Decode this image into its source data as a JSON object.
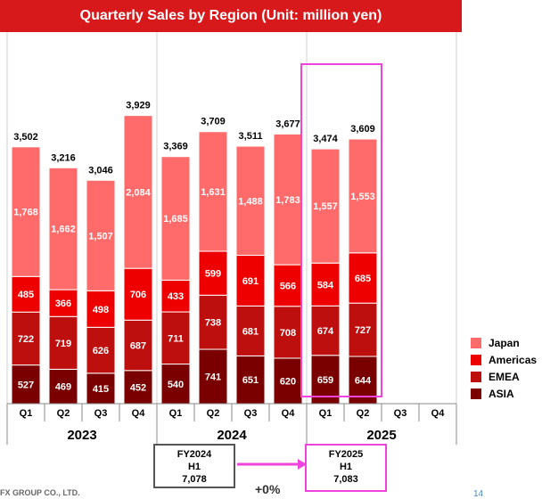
{
  "colors": {
    "japan": "#ff6a6a",
    "americas": "#ee0000",
    "emea": "#be0f0f",
    "asia": "#7a0000",
    "title_bg": "#d7191c",
    "highlight": "#ee44dd",
    "box_dark": "#555555"
  },
  "chart_data": {
    "type": "bar",
    "stacked": true,
    "title": "Quarterly Sales by Region (Unit: million yen)",
    "categories": [
      {
        "quarter": "Q1",
        "year": "2023"
      },
      {
        "quarter": "Q2",
        "year": "2023"
      },
      {
        "quarter": "Q3",
        "year": "2023"
      },
      {
        "quarter": "Q4",
        "year": "2023"
      },
      {
        "quarter": "Q1",
        "year": "2024"
      },
      {
        "quarter": "Q2",
        "year": "2024"
      },
      {
        "quarter": "Q3",
        "year": "2024"
      },
      {
        "quarter": "Q4",
        "year": "2024"
      },
      {
        "quarter": "Q1",
        "year": "2025"
      },
      {
        "quarter": "Q2",
        "year": "2025"
      },
      {
        "quarter": "Q3",
        "year": "2025"
      },
      {
        "quarter": "Q4",
        "year": "2025"
      }
    ],
    "years": [
      "2023",
      "2024",
      "2025"
    ],
    "series": [
      {
        "name": "ASIA",
        "values": [
          527,
          469,
          415,
          452,
          540,
          741,
          651,
          620,
          659,
          644,
          null,
          null
        ]
      },
      {
        "name": "EMEA",
        "values": [
          722,
          719,
          626,
          687,
          711,
          738,
          681,
          708,
          674,
          727,
          null,
          null
        ]
      },
      {
        "name": "Americas",
        "values": [
          485,
          366,
          498,
          706,
          433,
          599,
          691,
          566,
          584,
          685,
          null,
          null
        ]
      },
      {
        "name": "Japan",
        "values": [
          1768,
          1662,
          1507,
          2084,
          1685,
          1631,
          1488,
          1783,
          1557,
          1553,
          null,
          null
        ]
      }
    ],
    "totals": [
      "3,502",
      "3,216",
      "3,046",
      "3,929",
      "3,369",
      "3,709",
      "3,511",
      "3,677",
      "3,474",
      "3,609",
      null,
      null
    ],
    "value_labels": {
      "ASIA": [
        "527",
        "469",
        "415",
        "452",
        "540",
        "741",
        "651",
        "620",
        "659",
        "644"
      ],
      "EMEA": [
        "722",
        "719",
        "626",
        "687",
        "711",
        "738",
        "681",
        "708",
        "674",
        "727"
      ],
      "Americas": [
        "485",
        "366",
        "498",
        "706",
        "433",
        "599",
        "691",
        "566",
        "584",
        "685"
      ],
      "Japan": [
        "1,768",
        "1,662",
        "1,507",
        "2,084",
        "1,685",
        "1,631",
        "1,488",
        "1,783",
        "1,557",
        "1,553"
      ]
    },
    "ylim": [
      0,
      4500
    ],
    "legend_position": "right",
    "grid": false,
    "highlighted_group": "2025"
  },
  "legend": {
    "items": [
      {
        "name": "Japan",
        "color_key": "japan"
      },
      {
        "name": "Americas",
        "color_key": "americas"
      },
      {
        "name": "EMEA",
        "color_key": "emea"
      },
      {
        "name": "ASIA",
        "color_key": "asia"
      }
    ]
  },
  "comparison": {
    "fy2024": {
      "line1": "FY2024",
      "line2": "H1",
      "line3": "7,078"
    },
    "fy2025": {
      "line1": "FY2025",
      "line2": "H1",
      "line3": "7,083"
    },
    "change": "+0%"
  },
  "footer": {
    "company": "FX GROUP CO., LTD.",
    "page": "14"
  }
}
